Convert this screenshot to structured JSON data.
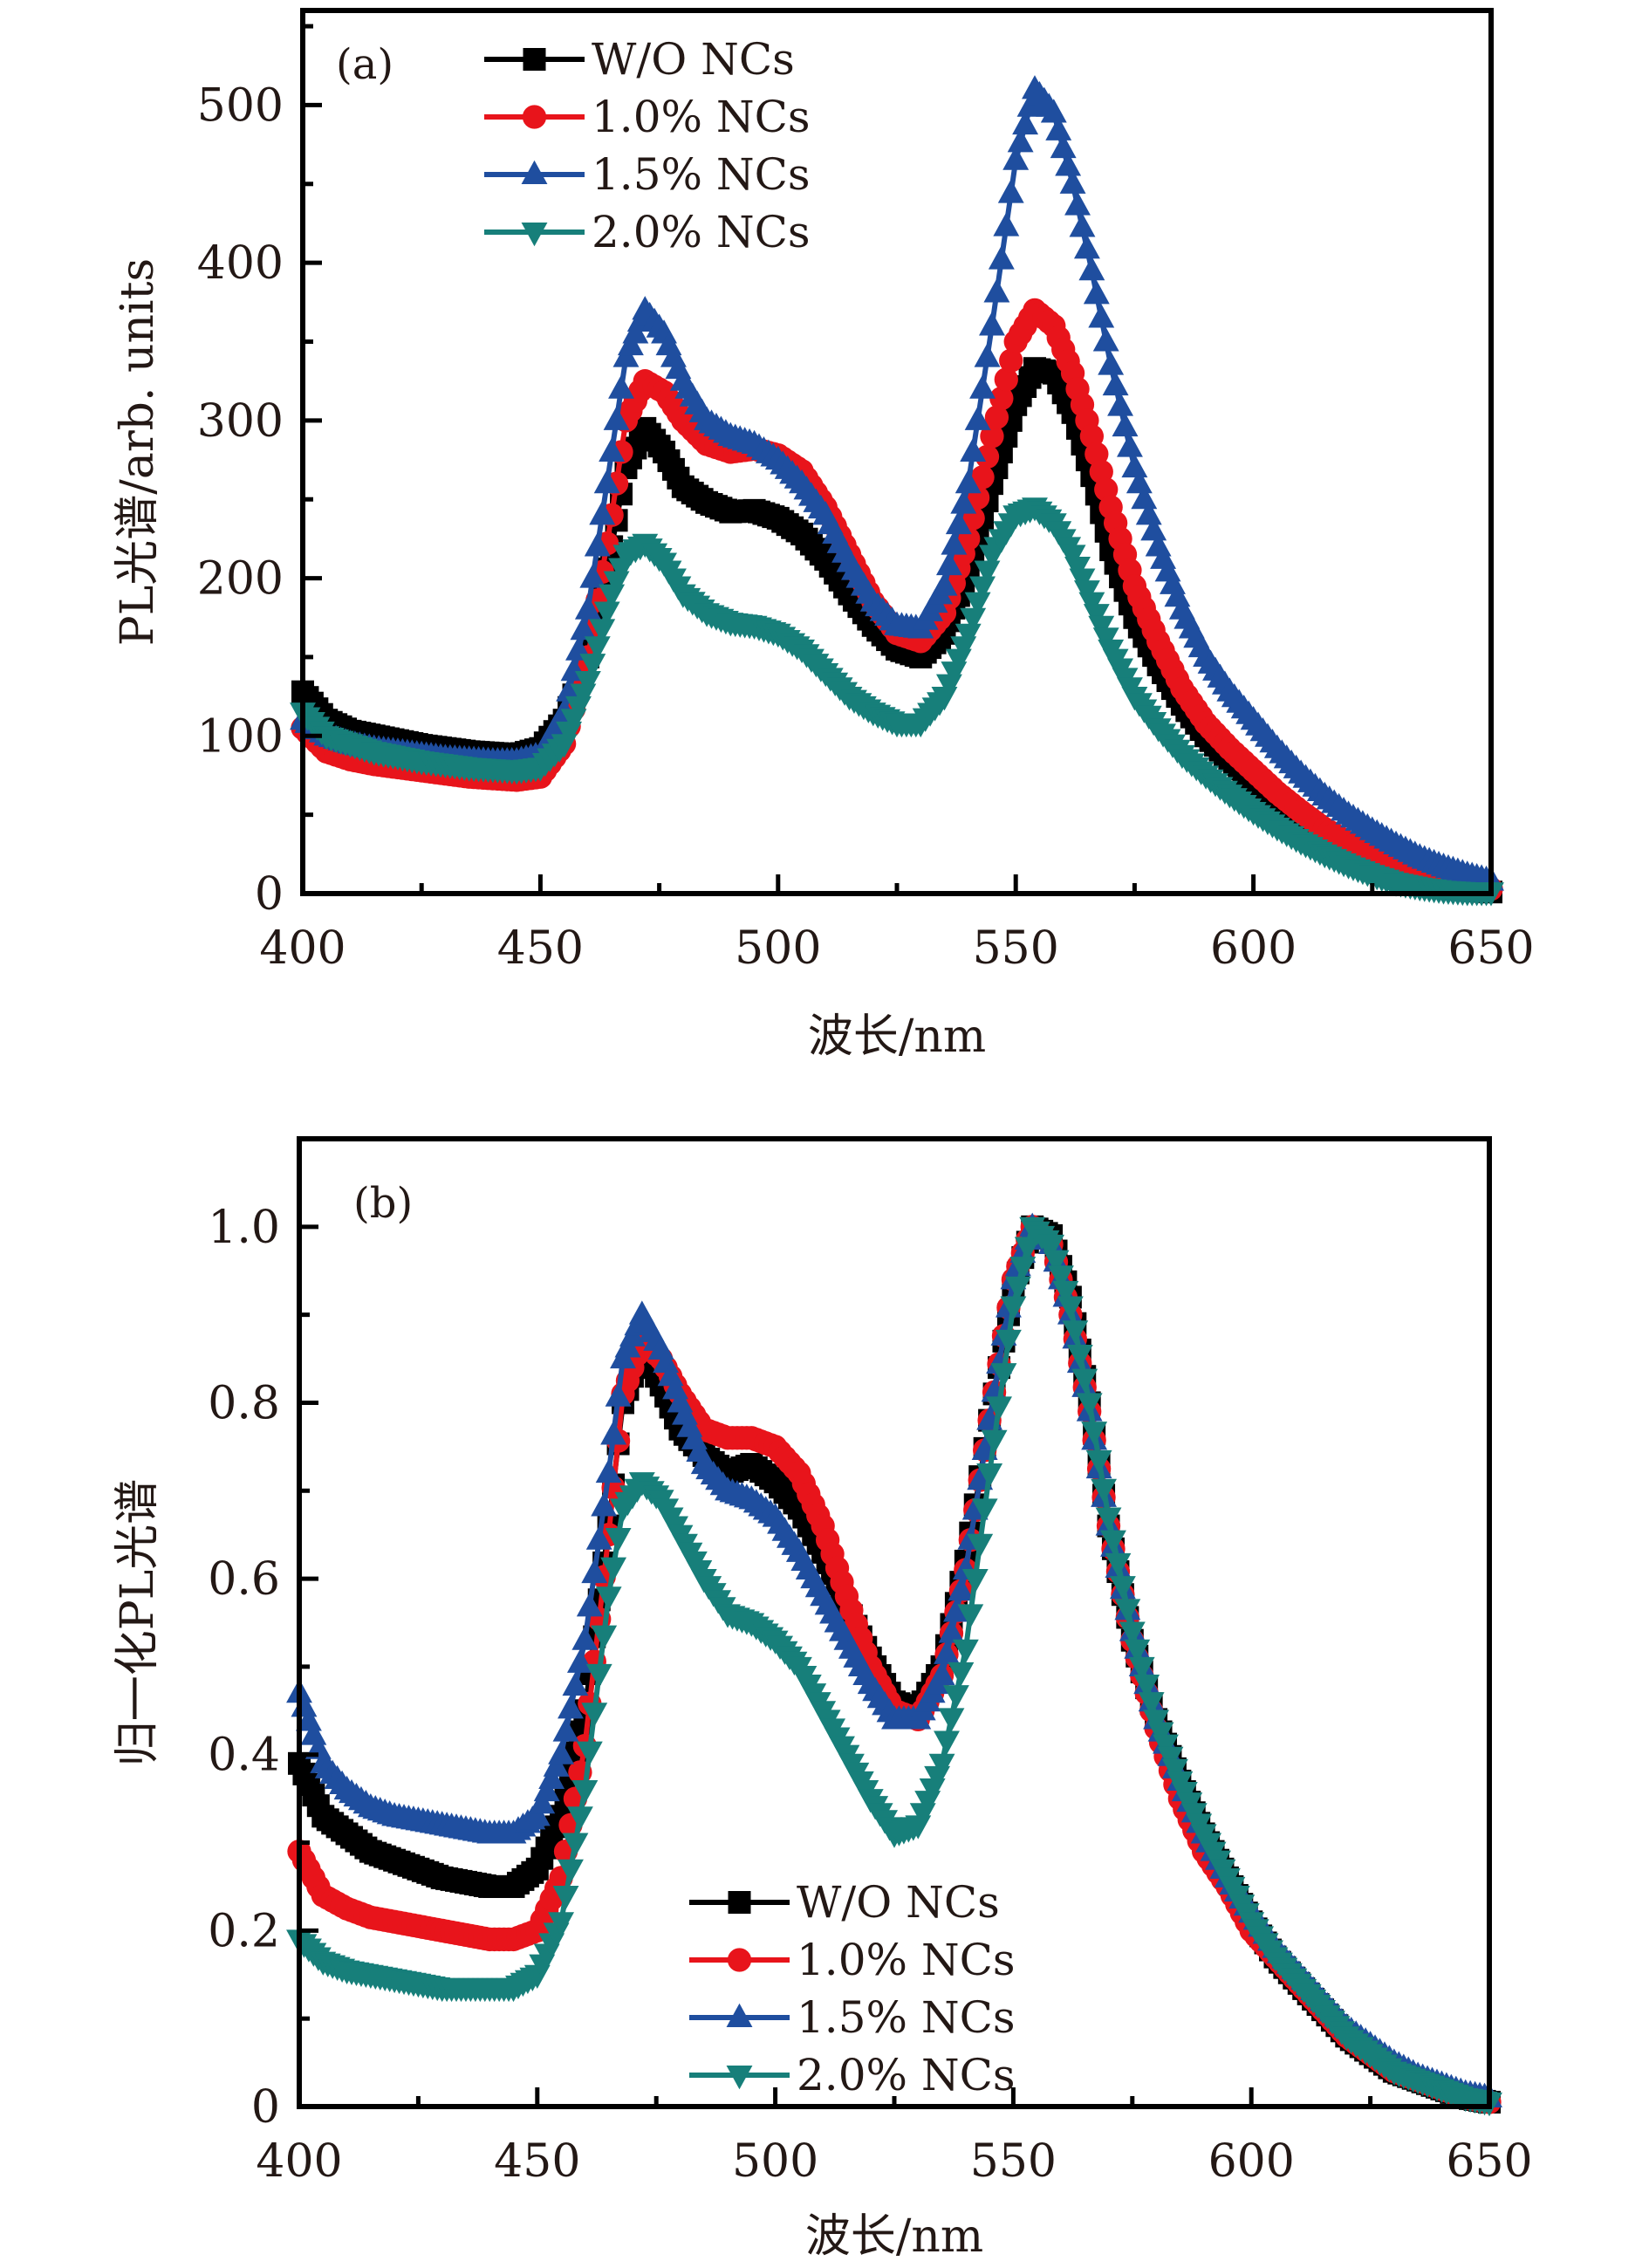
{
  "figure": {
    "series_styles": [
      {
        "name": "W/O NCs",
        "color": "#000000",
        "marker": "square"
      },
      {
        "name": "1.0% NCs",
        "color": "#e8141b",
        "marker": "circle"
      },
      {
        "name": "1.5% NCs",
        "color": "#1f4e9f",
        "marker": "triangle-up"
      },
      {
        "name": "2.0% NCs",
        "color": "#177f7a",
        "marker": "triangle-down"
      }
    ]
  },
  "chart_data": [
    {
      "type": "line",
      "panel_label": "(a)",
      "title": "",
      "xlabel": "波长/nm",
      "ylabel": "PL光谱/arb. units",
      "xlim": [
        400,
        650
      ],
      "ylim": [
        0,
        560
      ],
      "xticks": [
        400,
        450,
        500,
        550,
        600,
        650
      ],
      "xtick_labels": [
        "400",
        "450",
        "500",
        "550",
        "600",
        "650"
      ],
      "xminor": [
        425,
        475,
        525,
        575,
        625
      ],
      "yticks": [
        0,
        100,
        200,
        300,
        400,
        500
      ],
      "ytick_labels": [
        "0",
        "100",
        "200",
        "300",
        "400",
        "500"
      ],
      "yminor": [
        50,
        150,
        250,
        350,
        450,
        550
      ],
      "grid": false,
      "legend_position": "top-left",
      "x": [
        400,
        405,
        410,
        415,
        420,
        425,
        430,
        435,
        440,
        445,
        450,
        455,
        460,
        465,
        468,
        472,
        476,
        480,
        485,
        490,
        495,
        500,
        505,
        510,
        515,
        520,
        525,
        530,
        535,
        540,
        545,
        550,
        554,
        558,
        562,
        566,
        570,
        575,
        580,
        585,
        590,
        595,
        600,
        605,
        610,
        615,
        620,
        625,
        630,
        635,
        640,
        645,
        650
      ],
      "series": [
        {
          "name": "W/O NCs",
          "values": [
            128,
            110,
            103,
            100,
            97,
            94,
            92,
            90,
            89,
            88,
            92,
            110,
            150,
            220,
            270,
            295,
            280,
            258,
            248,
            242,
            243,
            238,
            228,
            212,
            190,
            170,
            155,
            150,
            165,
            205,
            260,
            310,
            333,
            330,
            305,
            265,
            218,
            175,
            145,
            120,
            100,
            85,
            70,
            58,
            46,
            36,
            27,
            20,
            14,
            9,
            5,
            2,
            1
          ]
        },
        {
          "name": "1.0% NCs",
          "values": [
            105,
            90,
            85,
            82,
            80,
            78,
            76,
            74,
            73,
            72,
            74,
            95,
            150,
            240,
            300,
            325,
            318,
            300,
            285,
            280,
            282,
            278,
            268,
            245,
            215,
            185,
            165,
            160,
            178,
            225,
            290,
            350,
            370,
            360,
            330,
            290,
            245,
            195,
            160,
            130,
            108,
            92,
            78,
            64,
            52,
            41,
            32,
            24,
            17,
            12,
            8,
            5,
            3
          ]
        },
        {
          "name": "1.5% NCs",
          "values": [
            110,
            100,
            95,
            92,
            90,
            88,
            86,
            85,
            84,
            84,
            88,
            115,
            180,
            280,
            340,
            370,
            355,
            325,
            300,
            290,
            285,
            275,
            260,
            240,
            210,
            185,
            170,
            168,
            195,
            260,
            360,
            465,
            510,
            495,
            450,
            395,
            335,
            270,
            220,
            180,
            150,
            128,
            110,
            92,
            76,
            62,
            50,
            40,
            31,
            23,
            17,
            12,
            8
          ]
        },
        {
          "name": "2.0% NCs",
          "values": [
            115,
            100,
            95,
            90,
            87,
            84,
            82,
            80,
            79,
            78,
            80,
            95,
            135,
            190,
            215,
            222,
            210,
            190,
            178,
            172,
            170,
            165,
            155,
            140,
            125,
            115,
            108,
            108,
            125,
            165,
            215,
            240,
            245,
            235,
            215,
            185,
            155,
            125,
            105,
            88,
            75,
            63,
            52,
            42,
            33,
            25,
            18,
            12,
            7,
            4,
            2,
            1,
            1
          ]
        }
      ]
    },
    {
      "type": "line",
      "panel_label": "(b)",
      "title": "",
      "xlabel": "波长/nm",
      "ylabel": "归一化PL光谱",
      "xlim": [
        400,
        650
      ],
      "ylim": [
        0,
        1.1
      ],
      "xticks": [
        400,
        450,
        500,
        550,
        600,
        650
      ],
      "xtick_labels": [
        "400",
        "450",
        "500",
        "550",
        "600",
        "650"
      ],
      "xminor": [
        425,
        475,
        525,
        575,
        625
      ],
      "yticks": [
        0,
        0.2,
        0.4,
        0.6,
        0.8,
        1.0
      ],
      "ytick_labels": [
        "0",
        "0.2",
        "0.4",
        "0.6",
        "0.8",
        "1.0"
      ],
      "yminor": [
        0.1,
        0.3,
        0.5,
        0.7,
        0.9
      ],
      "grid": false,
      "legend_position": "bottom-center",
      "x": [
        400,
        405,
        410,
        415,
        420,
        425,
        430,
        435,
        440,
        445,
        450,
        455,
        460,
        465,
        468,
        472,
        476,
        480,
        485,
        490,
        495,
        500,
        505,
        510,
        515,
        520,
        525,
        530,
        535,
        540,
        545,
        550,
        554,
        558,
        562,
        566,
        570,
        575,
        580,
        585,
        590,
        595,
        600,
        605,
        610,
        615,
        620,
        625,
        630,
        635,
        640,
        645,
        650
      ],
      "series": [
        {
          "name": "W/O NCs",
          "values": [
            0.39,
            0.33,
            0.31,
            0.29,
            0.28,
            0.27,
            0.26,
            0.255,
            0.25,
            0.25,
            0.27,
            0.33,
            0.45,
            0.66,
            0.8,
            0.86,
            0.82,
            0.77,
            0.74,
            0.72,
            0.73,
            0.71,
            0.68,
            0.63,
            0.57,
            0.51,
            0.46,
            0.45,
            0.5,
            0.62,
            0.78,
            0.93,
            1.0,
            0.99,
            0.92,
            0.8,
            0.66,
            0.53,
            0.44,
            0.37,
            0.31,
            0.26,
            0.21,
            0.17,
            0.14,
            0.11,
            0.08,
            0.06,
            0.04,
            0.03,
            0.02,
            0.01,
            0.005
          ]
        },
        {
          "name": "1.0% NCs",
          "values": [
            0.29,
            0.24,
            0.225,
            0.215,
            0.21,
            0.205,
            0.2,
            0.195,
            0.19,
            0.19,
            0.2,
            0.26,
            0.41,
            0.65,
            0.81,
            0.87,
            0.85,
            0.81,
            0.77,
            0.76,
            0.76,
            0.75,
            0.72,
            0.66,
            0.58,
            0.5,
            0.45,
            0.44,
            0.49,
            0.61,
            0.78,
            0.94,
            1.0,
            0.98,
            0.9,
            0.79,
            0.66,
            0.53,
            0.43,
            0.35,
            0.29,
            0.25,
            0.2,
            0.17,
            0.14,
            0.11,
            0.08,
            0.06,
            0.04,
            0.03,
            0.02,
            0.01,
            0.005
          ]
        },
        {
          "name": "1.5% NCs",
          "values": [
            0.47,
            0.39,
            0.36,
            0.34,
            0.33,
            0.325,
            0.32,
            0.315,
            0.31,
            0.31,
            0.33,
            0.4,
            0.53,
            0.72,
            0.85,
            0.9,
            0.86,
            0.8,
            0.73,
            0.7,
            0.69,
            0.67,
            0.63,
            0.58,
            0.53,
            0.48,
            0.44,
            0.44,
            0.49,
            0.61,
            0.78,
            0.94,
            1.0,
            0.98,
            0.9,
            0.79,
            0.66,
            0.54,
            0.44,
            0.37,
            0.31,
            0.26,
            0.22,
            0.18,
            0.15,
            0.12,
            0.09,
            0.07,
            0.05,
            0.035,
            0.025,
            0.015,
            0.01
          ]
        },
        {
          "name": "2.0% NCs",
          "values": [
            0.19,
            0.165,
            0.155,
            0.15,
            0.145,
            0.14,
            0.135,
            0.135,
            0.135,
            0.135,
            0.15,
            0.21,
            0.36,
            0.58,
            0.68,
            0.71,
            0.69,
            0.65,
            0.6,
            0.56,
            0.55,
            0.53,
            0.5,
            0.45,
            0.4,
            0.35,
            0.31,
            0.32,
            0.39,
            0.52,
            0.72,
            0.91,
            1.0,
            0.98,
            0.91,
            0.8,
            0.67,
            0.54,
            0.44,
            0.37,
            0.31,
            0.26,
            0.21,
            0.17,
            0.14,
            0.11,
            0.08,
            0.06,
            0.04,
            0.03,
            0.02,
            0.01,
            0.005
          ]
        }
      ]
    }
  ]
}
